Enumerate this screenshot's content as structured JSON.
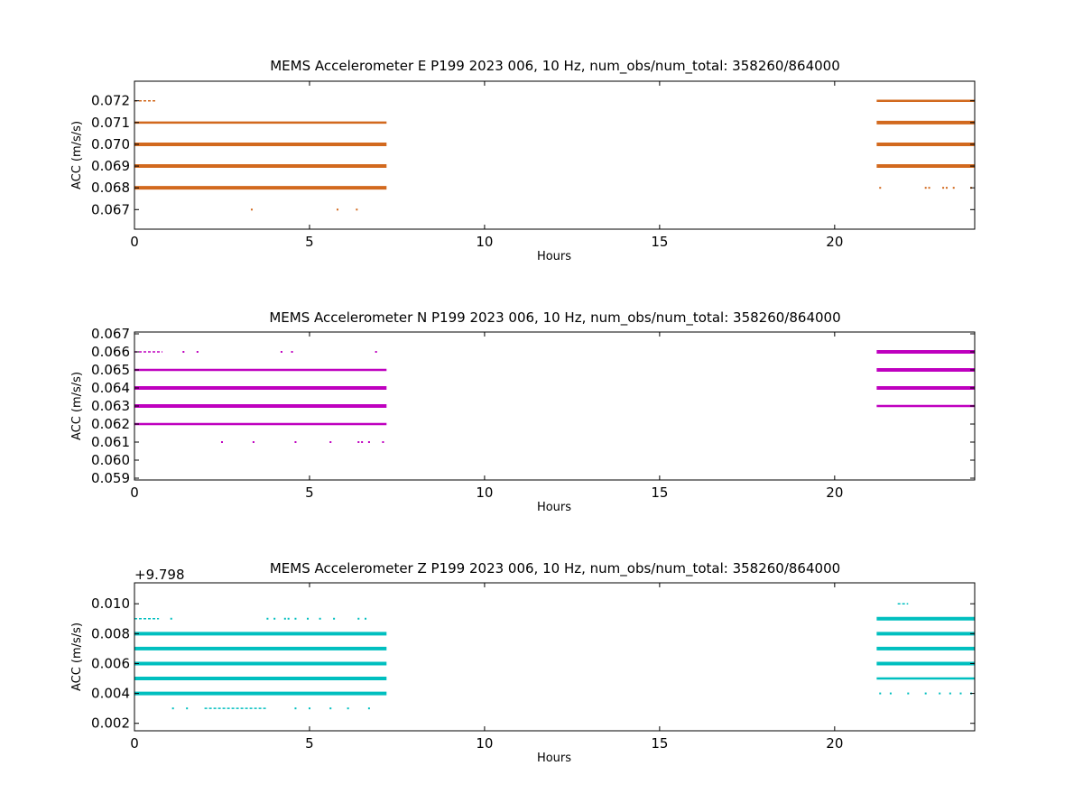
{
  "chart_data": [
    {
      "type": "scatter",
      "title": "MEMS Accelerometer E P199 2023 006, 10 Hz, num_obs/num_total: 358260/864000",
      "xlabel": "Hours",
      "ylabel": "ACC (m/s/s)",
      "xlim": [
        0,
        24
      ],
      "ylim": [
        0.0661,
        0.0729
      ],
      "x_ticks": [
        0,
        5,
        10,
        15,
        20
      ],
      "y_ticks": [
        "0.067",
        "0.068",
        "0.069",
        "0.070",
        "0.071",
        "0.072"
      ],
      "y_tick_values": [
        0.067,
        0.068,
        0.069,
        0.07,
        0.071,
        0.072
      ],
      "y_offset": "",
      "color": "#d2691e",
      "segments": [
        {
          "y": 0.072,
          "x_start": 0.0,
          "x_end": 0.6,
          "density": "sparse"
        },
        {
          "y": 0.071,
          "x_start": 0.0,
          "x_end": 7.2,
          "density": "medium"
        },
        {
          "y": 0.07,
          "x_start": 0.0,
          "x_end": 7.2,
          "density": "dense"
        },
        {
          "y": 0.069,
          "x_start": 0.0,
          "x_end": 7.2,
          "density": "dense"
        },
        {
          "y": 0.068,
          "x_start": 0.0,
          "x_end": 7.2,
          "density": "dense"
        },
        {
          "y": 0.072,
          "x_start": 21.2,
          "x_end": 24.0,
          "density": "medium"
        },
        {
          "y": 0.071,
          "x_start": 21.2,
          "x_end": 24.0,
          "density": "dense"
        },
        {
          "y": 0.07,
          "x_start": 21.2,
          "x_end": 24.0,
          "density": "dense"
        },
        {
          "y": 0.069,
          "x_start": 21.2,
          "x_end": 24.0,
          "density": "dense"
        }
      ],
      "points": [
        {
          "x": 3.35,
          "y": 0.067
        },
        {
          "x": 5.8,
          "y": 0.067
        },
        {
          "x": 6.35,
          "y": 0.067
        },
        {
          "x": 21.3,
          "y": 0.068
        },
        {
          "x": 22.6,
          "y": 0.068
        },
        {
          "x": 22.7,
          "y": 0.068
        },
        {
          "x": 23.1,
          "y": 0.068
        },
        {
          "x": 23.2,
          "y": 0.068
        },
        {
          "x": 23.4,
          "y": 0.068
        },
        {
          "x": 23.9,
          "y": 0.068
        }
      ]
    },
    {
      "type": "scatter",
      "title": "MEMS Accelerometer N P199 2023 006, 10 Hz, num_obs/num_total: 358260/864000",
      "xlabel": "Hours",
      "ylabel": "ACC (m/s/s)",
      "xlim": [
        0,
        24
      ],
      "ylim": [
        0.0589,
        0.0671
      ],
      "x_ticks": [
        0,
        5,
        10,
        15,
        20
      ],
      "y_ticks": [
        "0.059",
        "0.060",
        "0.061",
        "0.062",
        "0.063",
        "0.064",
        "0.065",
        "0.066",
        "0.067"
      ],
      "y_tick_values": [
        0.059,
        0.06,
        0.061,
        0.062,
        0.063,
        0.064,
        0.065,
        0.066,
        0.067
      ],
      "y_offset": "",
      "color": "#bf00bf",
      "segments": [
        {
          "y": 0.066,
          "x_start": 0.0,
          "x_end": 0.8,
          "density": "sparse"
        },
        {
          "y": 0.065,
          "x_start": 0.0,
          "x_end": 7.2,
          "density": "medium"
        },
        {
          "y": 0.064,
          "x_start": 0.0,
          "x_end": 7.2,
          "density": "dense"
        },
        {
          "y": 0.063,
          "x_start": 0.0,
          "x_end": 7.2,
          "density": "dense"
        },
        {
          "y": 0.062,
          "x_start": 0.0,
          "x_end": 7.2,
          "density": "medium"
        },
        {
          "y": 0.066,
          "x_start": 21.2,
          "x_end": 24.0,
          "density": "dense"
        },
        {
          "y": 0.065,
          "x_start": 21.2,
          "x_end": 24.0,
          "density": "dense"
        },
        {
          "y": 0.064,
          "x_start": 21.2,
          "x_end": 24.0,
          "density": "dense"
        },
        {
          "y": 0.063,
          "x_start": 21.2,
          "x_end": 24.0,
          "density": "medium"
        }
      ],
      "points": [
        {
          "x": 1.4,
          "y": 0.066
        },
        {
          "x": 1.8,
          "y": 0.066
        },
        {
          "x": 4.2,
          "y": 0.066
        },
        {
          "x": 4.5,
          "y": 0.066
        },
        {
          "x": 6.9,
          "y": 0.066
        },
        {
          "x": 2.5,
          "y": 0.061
        },
        {
          "x": 3.4,
          "y": 0.061
        },
        {
          "x": 4.6,
          "y": 0.061
        },
        {
          "x": 5.6,
          "y": 0.061
        },
        {
          "x": 6.4,
          "y": 0.061
        },
        {
          "x": 6.5,
          "y": 0.061
        },
        {
          "x": 6.7,
          "y": 0.061
        },
        {
          "x": 7.1,
          "y": 0.061
        }
      ]
    },
    {
      "type": "scatter",
      "title": "MEMS Accelerometer Z P199 2023 006, 10 Hz, num_obs/num_total: 358260/864000",
      "xlabel": "Hours",
      "ylabel": "ACC (m/s/s)",
      "xlim": [
        0,
        24
      ],
      "ylim": [
        9.7995,
        9.8094
      ],
      "x_ticks": [
        0,
        5,
        10,
        15,
        20
      ],
      "y_ticks": [
        "0.002",
        "0.004",
        "0.006",
        "0.008",
        "0.010"
      ],
      "y_tick_values": [
        9.8,
        9.802,
        9.804,
        9.806,
        9.808
      ],
      "y_offset": "+9.798",
      "color": "#00bfbf",
      "segments": [
        {
          "y": 9.807,
          "x_start": 0.0,
          "x_end": 0.7,
          "density": "sparse"
        },
        {
          "y": 9.806,
          "x_start": 0.0,
          "x_end": 7.2,
          "density": "dense"
        },
        {
          "y": 9.805,
          "x_start": 0.0,
          "x_end": 7.2,
          "density": "dense"
        },
        {
          "y": 9.804,
          "x_start": 0.0,
          "x_end": 7.2,
          "density": "dense"
        },
        {
          "y": 9.803,
          "x_start": 0.0,
          "x_end": 7.2,
          "density": "dense"
        },
        {
          "y": 9.802,
          "x_start": 0.0,
          "x_end": 7.2,
          "density": "dense"
        },
        {
          "y": 9.801,
          "x_start": 2.0,
          "x_end": 3.8,
          "density": "sparse"
        },
        {
          "y": 9.808,
          "x_start": 21.8,
          "x_end": 22.1,
          "density": "sparse"
        },
        {
          "y": 9.807,
          "x_start": 21.2,
          "x_end": 24.0,
          "density": "dense"
        },
        {
          "y": 9.806,
          "x_start": 21.2,
          "x_end": 24.0,
          "density": "dense"
        },
        {
          "y": 9.805,
          "x_start": 21.2,
          "x_end": 24.0,
          "density": "dense"
        },
        {
          "y": 9.804,
          "x_start": 21.2,
          "x_end": 24.0,
          "density": "dense"
        },
        {
          "y": 9.803,
          "x_start": 21.2,
          "x_end": 24.0,
          "density": "medium"
        }
      ],
      "points": [
        {
          "x": 1.05,
          "y": 9.807
        },
        {
          "x": 3.8,
          "y": 9.807
        },
        {
          "x": 4.0,
          "y": 9.807
        },
        {
          "x": 4.3,
          "y": 9.807
        },
        {
          "x": 4.4,
          "y": 9.807
        },
        {
          "x": 4.6,
          "y": 9.807
        },
        {
          "x": 4.95,
          "y": 9.807
        },
        {
          "x": 5.3,
          "y": 9.807
        },
        {
          "x": 5.7,
          "y": 9.807
        },
        {
          "x": 6.4,
          "y": 9.807
        },
        {
          "x": 6.6,
          "y": 9.807
        },
        {
          "x": 1.1,
          "y": 9.801
        },
        {
          "x": 1.5,
          "y": 9.801
        },
        {
          "x": 4.6,
          "y": 9.801
        },
        {
          "x": 5.0,
          "y": 9.801
        },
        {
          "x": 5.6,
          "y": 9.801
        },
        {
          "x": 6.1,
          "y": 9.801
        },
        {
          "x": 6.7,
          "y": 9.801
        },
        {
          "x": 21.3,
          "y": 9.802
        },
        {
          "x": 21.6,
          "y": 9.802
        },
        {
          "x": 22.1,
          "y": 9.802
        },
        {
          "x": 22.6,
          "y": 9.802
        },
        {
          "x": 23.0,
          "y": 9.802
        },
        {
          "x": 23.3,
          "y": 9.802
        },
        {
          "x": 23.6,
          "y": 9.802
        },
        {
          "x": 23.9,
          "y": 9.802
        }
      ]
    }
  ]
}
